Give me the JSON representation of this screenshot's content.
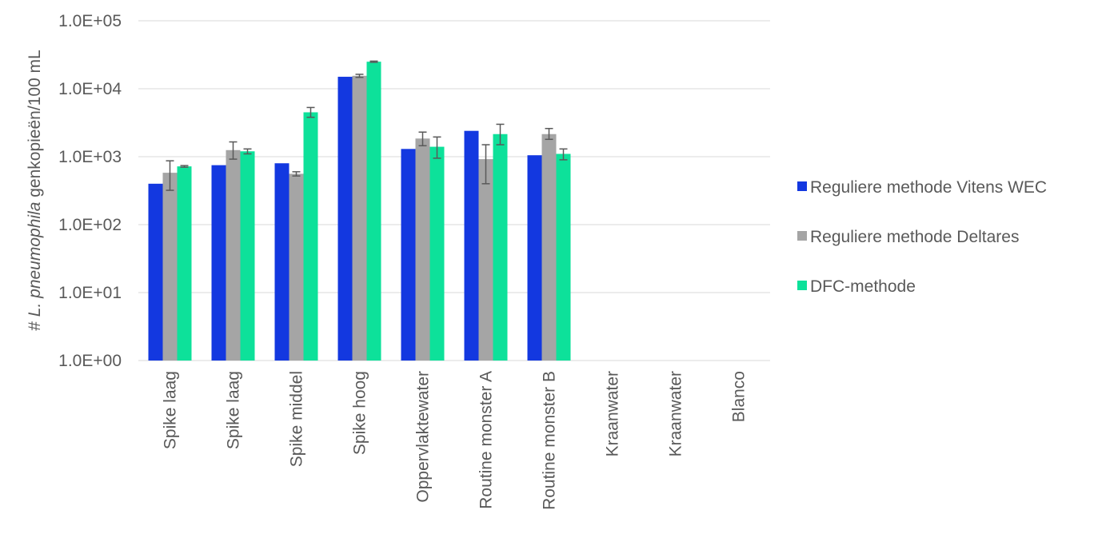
{
  "chart_data": {
    "type": "bar",
    "title": "",
    "ylabel_parts": [
      "# ",
      "L. pneumophila",
      " genkopieën/100 mL"
    ],
    "xlabel": "",
    "yscale": "log",
    "ylim": [
      1,
      100000
    ],
    "y_ticks": [
      {
        "value": 1,
        "label": "1.0E+00"
      },
      {
        "value": 10,
        "label": "1.0E+01"
      },
      {
        "value": 100,
        "label": "1.0E+02"
      },
      {
        "value": 1000,
        "label": "1.0E+03"
      },
      {
        "value": 10000,
        "label": "1.0E+04"
      },
      {
        "value": 100000,
        "label": "1.0E+05"
      }
    ],
    "grid": true,
    "legend_position": "right",
    "categories": [
      "Spike laag",
      "Spike laag",
      "Spike middel",
      "Spike hoog",
      "Oppervlaktewater",
      "Routine monster A",
      "Routine monster B",
      "Kraanwater",
      "Kraanwater",
      "Blanco"
    ],
    "series": [
      {
        "name": "Reguliere methode Vitens WEC",
        "color": "#1338e0",
        "values": [
          400,
          750,
          800,
          15000,
          1300,
          2400,
          1050,
          null,
          null,
          null
        ],
        "error": [
          null,
          null,
          null,
          null,
          null,
          null,
          null,
          null,
          null,
          null
        ]
      },
      {
        "name": "Reguliere methode Deltares",
        "color": "#a5a5a5",
        "values": [
          580,
          1250,
          560,
          15500,
          1850,
          920,
          2150,
          null,
          null,
          null
        ],
        "error": [
          [
            320,
            870
          ],
          [
            920,
            1650
          ],
          [
            520,
            600
          ],
          [
            14700,
            16300
          ],
          [
            1450,
            2300
          ],
          [
            400,
            1500
          ],
          [
            1800,
            2600
          ],
          null,
          null,
          null
        ]
      },
      {
        "name": "DFC-methode",
        "color": "#0de19a",
        "values": [
          720,
          1200,
          4500,
          25000,
          1400,
          2150,
          1100,
          null,
          null,
          null
        ],
        "error": [
          [
            700,
            740
          ],
          [
            1100,
            1300
          ],
          [
            3800,
            5300
          ],
          [
            24500,
            25500
          ],
          [
            950,
            1950
          ],
          [
            1500,
            3000
          ],
          [
            900,
            1300
          ],
          null,
          null,
          null
        ]
      }
    ]
  }
}
